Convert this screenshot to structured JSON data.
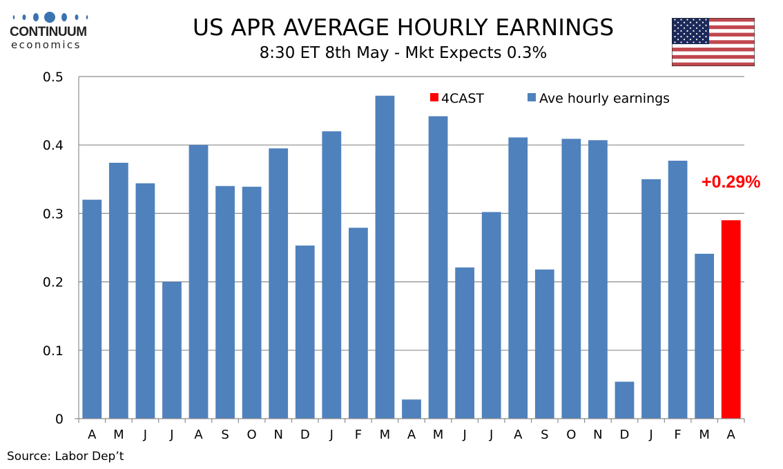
{
  "brand": {
    "name": "CONTINUUM",
    "sub": "economics",
    "color": "#3a73b0"
  },
  "header": {
    "title": "US APR AVERAGE HOURLY EARNINGS",
    "subtitle": "8:30 ET 8th May - Mkt Expects 0.3%",
    "flag_icon": "us-flag"
  },
  "footer": {
    "source": "Source: Labor Dep’t"
  },
  "chart_data": {
    "type": "bar",
    "title": "US APR AVERAGE HOURLY EARNINGS",
    "subtitle": "8:30 ET 8th May - Mkt Expects 0.3%",
    "xlabel": "",
    "ylabel": "",
    "ylim": [
      0,
      0.5
    ],
    "yticks": [
      0,
      0.1,
      0.2,
      0.3,
      0.4,
      0.5
    ],
    "ytick_labels": [
      "0",
      "0.1",
      "0.2",
      "0.3",
      "0.4",
      "0.5"
    ],
    "grid": true,
    "categories": [
      "A",
      "M",
      "J",
      "J",
      "A",
      "S",
      "O",
      "N",
      "D",
      "J",
      "F",
      "M",
      "A",
      "M",
      "J",
      "J",
      "A",
      "S",
      "O",
      "N",
      "D",
      "J",
      "F",
      "M",
      "A"
    ],
    "series": [
      {
        "name": "Ave hourly earnings",
        "color": "#4f81bd",
        "values": [
          0.32,
          0.374,
          0.344,
          0.2,
          0.4,
          0.34,
          0.339,
          0.395,
          0.253,
          0.42,
          0.279,
          0.472,
          0.028,
          0.442,
          0.221,
          0.302,
          0.411,
          0.218,
          0.409,
          0.407,
          0.054,
          0.35,
          0.377,
          0.241,
          null
        ]
      },
      {
        "name": "4CAST",
        "color": "#ff0000",
        "values": [
          null,
          null,
          null,
          null,
          null,
          null,
          null,
          null,
          null,
          null,
          null,
          null,
          null,
          null,
          null,
          null,
          null,
          null,
          null,
          null,
          null,
          null,
          null,
          null,
          0.29
        ]
      }
    ],
    "legend": {
      "position": "top-right",
      "entries": [
        "4CAST",
        "Ave hourly earnings"
      ]
    },
    "annotations": [
      {
        "text": "+0.29%",
        "color": "#ff0000",
        "category_index": 24
      }
    ]
  }
}
